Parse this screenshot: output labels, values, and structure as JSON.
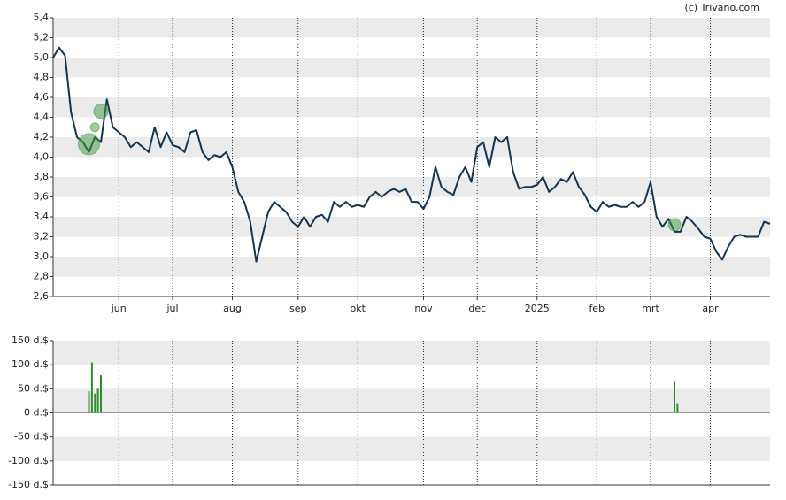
{
  "watermark": "(c) Trivano.com",
  "chart_data": [
    {
      "type": "line",
      "categories": [
        null,
        null,
        null,
        null,
        null,
        null,
        null,
        null,
        null,
        null,
        null,
        "jun",
        null,
        null,
        null,
        null,
        null,
        null,
        null,
        null,
        "jul",
        null,
        null,
        null,
        null,
        null,
        null,
        null,
        null,
        null,
        "aug",
        null,
        null,
        null,
        null,
        null,
        null,
        null,
        null,
        null,
        null,
        "sep",
        null,
        null,
        null,
        null,
        null,
        null,
        null,
        null,
        null,
        "okt",
        null,
        null,
        null,
        null,
        null,
        null,
        null,
        null,
        null,
        null,
        "nov",
        null,
        null,
        null,
        null,
        null,
        null,
        null,
        null,
        "dec",
        null,
        null,
        null,
        null,
        null,
        null,
        null,
        null,
        null,
        "2025",
        null,
        null,
        null,
        null,
        null,
        null,
        null,
        null,
        null,
        "feb",
        null,
        null,
        null,
        null,
        null,
        null,
        null,
        null,
        "mrt",
        null,
        null,
        null,
        null,
        null,
        null,
        null,
        null,
        null,
        "apr",
        null,
        null,
        null,
        null,
        null,
        null,
        null,
        null,
        null,
        null
      ],
      "series": [
        {
          "color": "#143552",
          "values": [
            5.0,
            5.1,
            5.02,
            4.45,
            4.2,
            4.15,
            4.05,
            4.2,
            4.15,
            4.58,
            4.3,
            4.25,
            4.2,
            4.1,
            4.15,
            4.1,
            4.05,
            4.3,
            4.1,
            4.25,
            4.12,
            4.1,
            4.05,
            4.25,
            4.27,
            4.05,
            3.97,
            4.02,
            4.0,
            4.05,
            3.9,
            3.65,
            3.55,
            3.35,
            2.95,
            3.2,
            3.45,
            3.55,
            3.5,
            3.45,
            3.35,
            3.3,
            3.4,
            3.3,
            3.4,
            3.42,
            3.35,
            3.55,
            3.5,
            3.55,
            3.5,
            3.52,
            3.5,
            3.6,
            3.65,
            3.6,
            3.65,
            3.68,
            3.65,
            3.68,
            3.55,
            3.55,
            3.48,
            3.6,
            3.9,
            3.7,
            3.65,
            3.62,
            3.8,
            3.9,
            3.75,
            4.1,
            4.15,
            3.9,
            4.2,
            4.15,
            4.2,
            3.85,
            3.68,
            3.7,
            3.7,
            3.72,
            3.8,
            3.65,
            3.7,
            3.78,
            3.75,
            3.85,
            3.7,
            3.62,
            3.5,
            3.45,
            3.55,
            3.5,
            3.52,
            3.5,
            3.5,
            3.55,
            3.5,
            3.55,
            3.75,
            3.4,
            3.3,
            3.38,
            3.25,
            3.25,
            3.4,
            3.35,
            3.28,
            3.2,
            3.18,
            3.05,
            2.97,
            3.1,
            3.2,
            3.22,
            3.2,
            3.2,
            3.2,
            3.35,
            3.33
          ]
        }
      ],
      "bubbles": {
        "color": "#3f9a3f",
        "values": [
          null,
          null,
          null,
          null,
          null,
          null,
          4.13,
          4.3,
          4.46,
          null,
          null,
          null,
          null,
          null,
          null,
          null,
          null,
          null,
          null,
          null,
          null,
          null,
          null,
          null,
          null,
          null,
          null,
          null,
          null,
          null,
          null,
          null,
          null,
          null,
          null,
          null,
          null,
          null,
          null,
          null,
          null,
          null,
          null,
          null,
          null,
          null,
          null,
          null,
          null,
          null,
          null,
          null,
          null,
          null,
          null,
          null,
          null,
          null,
          null,
          null,
          null,
          null,
          null,
          null,
          null,
          null,
          null,
          null,
          null,
          null,
          null,
          null,
          null,
          null,
          null,
          null,
          null,
          null,
          null,
          null,
          null,
          null,
          null,
          null,
          null,
          null,
          null,
          null,
          null,
          null,
          null,
          null,
          null,
          null,
          null,
          null,
          null,
          null,
          null,
          null,
          null,
          null,
          null,
          null,
          3.32,
          null,
          null,
          null,
          null,
          null,
          null,
          null,
          null,
          null,
          null,
          null,
          null,
          null,
          null,
          null,
          null
        ],
        "sizes": [
          null,
          null,
          null,
          null,
          null,
          null,
          12,
          5,
          8,
          null,
          null,
          null,
          null,
          null,
          null,
          null,
          null,
          null,
          null,
          null,
          null,
          null,
          null,
          null,
          null,
          null,
          null,
          null,
          null,
          null,
          null,
          null,
          null,
          null,
          null,
          null,
          null,
          null,
          null,
          null,
          null,
          null,
          null,
          null,
          null,
          null,
          null,
          null,
          null,
          null,
          null,
          null,
          null,
          null,
          null,
          null,
          null,
          null,
          null,
          null,
          null,
          null,
          null,
          null,
          null,
          null,
          null,
          null,
          null,
          null,
          null,
          null,
          null,
          null,
          null,
          null,
          null,
          null,
          null,
          null,
          null,
          null,
          null,
          null,
          null,
          null,
          null,
          null,
          null,
          null,
          null,
          null,
          null,
          null,
          null,
          null,
          null,
          null,
          null,
          null,
          null,
          null,
          null,
          null,
          7,
          null,
          null,
          null,
          null,
          null,
          null,
          null,
          null,
          null,
          null,
          null,
          null,
          null,
          null,
          null,
          null
        ]
      },
      "ylim": [
        2.6,
        5.4
      ],
      "yticks": [
        {
          "value": 2.6,
          "label": "2,6"
        },
        {
          "value": 2.8,
          "label": "2,8"
        },
        {
          "value": 3.0,
          "label": "3,0"
        },
        {
          "value": 3.2,
          "label": "3,2"
        },
        {
          "value": 3.4,
          "label": "3,4"
        },
        {
          "value": 3.6,
          "label": "3,6"
        },
        {
          "value": 3.8,
          "label": "3,8"
        },
        {
          "value": 4.0,
          "label": "4,0"
        },
        {
          "value": 4.2,
          "label": "4,2"
        },
        {
          "value": 4.4,
          "label": "4,4"
        },
        {
          "value": 4.6,
          "label": "4,6"
        },
        {
          "value": 4.8,
          "label": "4,8"
        },
        {
          "value": 5.0,
          "label": "5,0"
        },
        {
          "value": 5.2,
          "label": "5,2"
        },
        {
          "value": 5.4,
          "label": "5,4"
        }
      ],
      "grid": true
    },
    {
      "type": "bar",
      "color": "#2e8b2e",
      "values": [
        null,
        null,
        null,
        null,
        null,
        null,
        null,
        null,
        null,
        null,
        null,
        null,
        45,
        105,
        40,
        50,
        78,
        null,
        null,
        null,
        null,
        null,
        null,
        null,
        null,
        null,
        null,
        null,
        null,
        null,
        null,
        null,
        null,
        null,
        null,
        null,
        null,
        null,
        null,
        null,
        null,
        null,
        null,
        null,
        null,
        null,
        null,
        null,
        null,
        null,
        null,
        null,
        null,
        null,
        null,
        null,
        null,
        null,
        null,
        null,
        null,
        null,
        null,
        null,
        null,
        null,
        null,
        null,
        null,
        null,
        null,
        null,
        null,
        null,
        null,
        null,
        null,
        null,
        null,
        null,
        null,
        null,
        null,
        null,
        null,
        null,
        null,
        null,
        null,
        null,
        null,
        null,
        null,
        null,
        null,
        null,
        null,
        null,
        null,
        null,
        null,
        null,
        null,
        null,
        null,
        null,
        null,
        null,
        null,
        null,
        null,
        null,
        null,
        null,
        null,
        null,
        null,
        null,
        null,
        null,
        null,
        null,
        null,
        null,
        null,
        null,
        null,
        null,
        null,
        null,
        null,
        null,
        null,
        null,
        null,
        null,
        null,
        null,
        null,
        null,
        null,
        null,
        null,
        null,
        null,
        null,
        null,
        null,
        null,
        null,
        null,
        null,
        null,
        null,
        null,
        null,
        null,
        null,
        null,
        null,
        null,
        null,
        null,
        null,
        null,
        null,
        null,
        null,
        null,
        null,
        null,
        null,
        null,
        null,
        null,
        null,
        null,
        null,
        null,
        null,
        null,
        null,
        null,
        null,
        null,
        null,
        null,
        null,
        null,
        null,
        null,
        null,
        null,
        null,
        null,
        null,
        null,
        null,
        null,
        null,
        null,
        null,
        null,
        null,
        null,
        null,
        null,
        null,
        65,
        20,
        null,
        null,
        null,
        null,
        null,
        null,
        null,
        null,
        null,
        null,
        null,
        null,
        null,
        null,
        null,
        null,
        null,
        null,
        null,
        null,
        null,
        null,
        null,
        null,
        null,
        null,
        null,
        null,
        null,
        null,
        null
      ],
      "ylim": [
        -150,
        150
      ],
      "yticks": [
        {
          "value": -150,
          "label": "-150 d.$"
        },
        {
          "value": -100,
          "label": "-100 d.$"
        },
        {
          "value": -50,
          "label": "-50 d.$"
        },
        {
          "value": 0,
          "label": "0 d.$"
        },
        {
          "value": 50,
          "label": "50 d.$"
        },
        {
          "value": 100,
          "label": "100 d.$"
        },
        {
          "value": 150,
          "label": "150 d.$"
        }
      ],
      "grid": true
    }
  ]
}
